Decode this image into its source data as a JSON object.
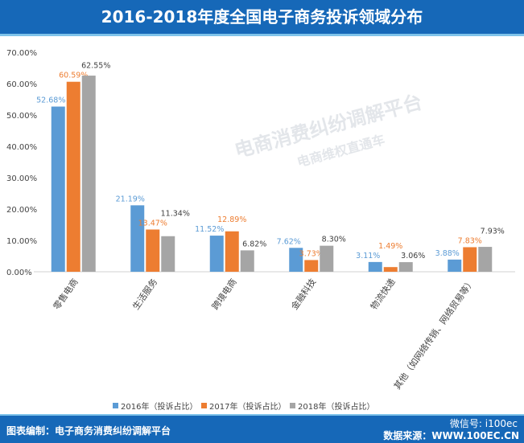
{
  "header": {
    "title": "2016-2018年度全国电子商务投诉领域分布"
  },
  "footer": {
    "credit": "图表编制：电子商务消费纠纷调解平台",
    "source": "数据来源：WWW.100EC.CN",
    "wechat": "微信号: i100ec"
  },
  "watermark": {
    "line1": "电商消费纠纷调解平台",
    "line2": "电商维权直通车"
  },
  "chart_data": {
    "type": "bar",
    "title": "",
    "categories": [
      "零售电商",
      "生活服务",
      "跨境电商",
      "金融科技",
      "物流快递",
      "其他（如网络传销、网络贸易等）"
    ],
    "series": [
      {
        "name": "2016年（投诉占比）",
        "color": "#5b9bd5",
        "label_color": "#5b9bd5",
        "values": [
          52.68,
          21.19,
          11.52,
          7.62,
          3.11,
          3.88
        ]
      },
      {
        "name": "2017年（投诉占比）",
        "color": "#ed7d31",
        "label_color": "#ed7d31",
        "values": [
          60.59,
          13.47,
          12.89,
          3.73,
          1.49,
          7.83
        ]
      },
      {
        "name": "2018年（投诉占比）",
        "color": "#a5a5a5",
        "label_color": "#404040",
        "values": [
          62.55,
          11.34,
          6.82,
          8.3,
          3.06,
          7.93
        ]
      }
    ],
    "yticks": [
      "0.00%",
      "10.00%",
      "20.00%",
      "30.00%",
      "40.00%",
      "50.00%",
      "60.00%",
      "70.00%"
    ],
    "ylim": [
      0,
      70
    ],
    "grid": false,
    "legend": "bottom"
  }
}
